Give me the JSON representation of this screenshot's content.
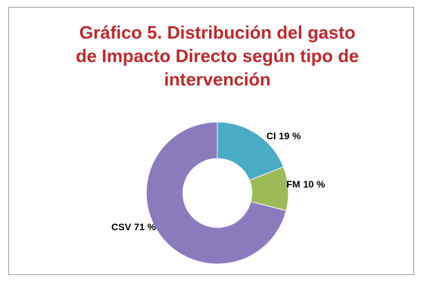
{
  "chart_data": {
    "type": "donut",
    "title": "Gráfico 5. Distribución del gasto de Impacto Directo según tipo de intervención",
    "categories": [
      "CI",
      "FM",
      "CSV"
    ],
    "values": [
      19,
      10,
      71
    ],
    "value_labels": [
      "19 %",
      "10 %",
      "71 %"
    ],
    "colors": [
      "#4bacc6",
      "#9bbb59",
      "#8b7bbd"
    ]
  }
}
